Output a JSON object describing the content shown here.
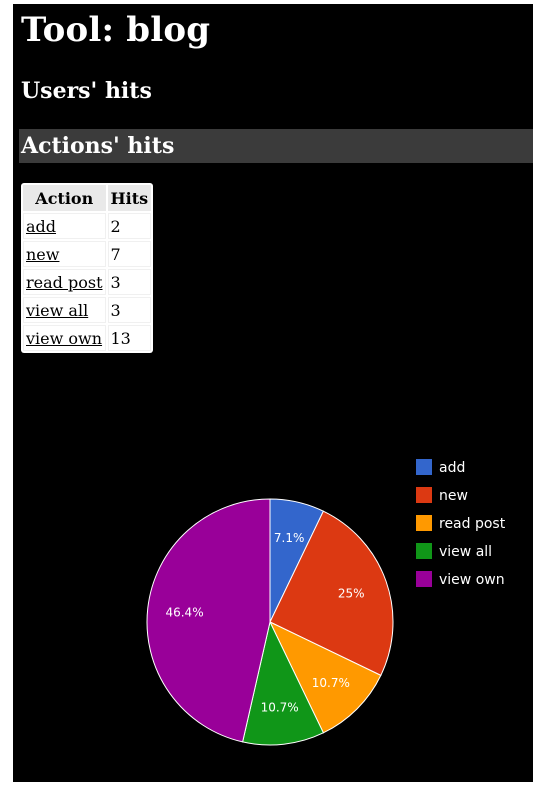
{
  "page": {
    "title": "Tool: blog",
    "users_heading": "Users' hits",
    "actions_heading": "Actions' hits"
  },
  "table": {
    "headers": [
      "Action",
      "Hits"
    ],
    "rows": [
      {
        "action": "add",
        "hits": "2"
      },
      {
        "action": "new",
        "hits": "7"
      },
      {
        "action": "read post",
        "hits": "3"
      },
      {
        "action": "view all",
        "hits": "3"
      },
      {
        "action": "view own",
        "hits": "13"
      }
    ]
  },
  "chart_data": {
    "type": "pie",
    "slices": [
      {
        "label": "add",
        "value": 2,
        "percent_label": "7.1%",
        "color": "#3366cc"
      },
      {
        "label": "new",
        "value": 7,
        "percent_label": "25%",
        "color": "#dc3912"
      },
      {
        "label": "read post",
        "value": 3,
        "percent_label": "10.7%",
        "color": "#ff9900"
      },
      {
        "label": "view all",
        "value": 3,
        "percent_label": "10.7%",
        "color": "#109618"
      },
      {
        "label": "view own",
        "value": 13,
        "percent_label": "46.4%",
        "color": "#990099"
      }
    ],
    "legend_position": "right",
    "title": ""
  }
}
